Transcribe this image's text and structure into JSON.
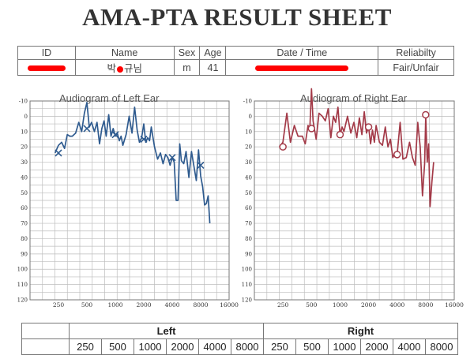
{
  "title": "AMA-PTA RESULT SHEET",
  "info": {
    "headers": [
      "ID",
      "Name",
      "Sex",
      "Age",
      "Date / Time",
      "Reliabilty"
    ],
    "name_start": "박",
    "name_end": "규님",
    "sex": "m",
    "age": "41",
    "reliability": "Fair/Unfair"
  },
  "chart_data": [
    {
      "type": "line",
      "title": "Audiogram of Left Ear",
      "color": "#2f5b8f",
      "y_ticks": [
        "-10",
        "0",
        "10",
        "20",
        "30",
        "40",
        "50",
        "60",
        "70",
        "80",
        "90",
        "100",
        "110",
        "120"
      ],
      "x_ticks": [
        "250",
        "500",
        "1000",
        "2000",
        "4000",
        "8000",
        "16000"
      ],
      "ylim": [
        -10,
        120
      ],
      "y_inverted": true,
      "series": [
        {
          "x": [
            230,
            250,
            270,
            290,
            310,
            330,
            350,
            380,
            410,
            440,
            470,
            500,
            530,
            560,
            600,
            640,
            680,
            720,
            760,
            800,
            850,
            900,
            950,
            1000,
            1050,
            1100,
            1150,
            1200,
            1300,
            1400,
            1500,
            1600,
            1700,
            1800,
            1900,
            2000,
            2100,
            2200,
            2300,
            2400,
            2600,
            2800,
            3000,
            3200,
            3400,
            3600,
            3800,
            4000,
            4200,
            4400,
            4600,
            4800,
            5000,
            5300,
            5600,
            6000,
            6400,
            6800,
            7200,
            7600,
            8000,
            8400,
            8800,
            9200,
            9600,
            10000
          ],
          "y": [
            24,
            19,
            17,
            21,
            12,
            13,
            13,
            11,
            4,
            10,
            -2,
            -9,
            7,
            4,
            10,
            4,
            18,
            8,
            3,
            13,
            -1,
            13,
            8,
            13,
            11,
            16,
            13,
            19,
            12,
            0,
            11,
            -6,
            9,
            17,
            14,
            5,
            17,
            14,
            16,
            7,
            20,
            28,
            24,
            31,
            25,
            27,
            32,
            27,
            30,
            55,
            55,
            18,
            29,
            31,
            23,
            40,
            23,
            33,
            42,
            22,
            39,
            46,
            58,
            57,
            52,
            70
          ]
        }
      ],
      "markers": [
        {
          "x": 250,
          "y": 24
        },
        {
          "x": 500,
          "y": 8
        },
        {
          "x": 1000,
          "y": 12
        },
        {
          "x": 2000,
          "y": 15
        },
        {
          "x": 4000,
          "y": 27
        },
        {
          "x": 8000,
          "y": 32
        }
      ],
      "marker_symbol": "x"
    },
    {
      "type": "line",
      "title": "Audiogram of Right Ear",
      "color": "#a33a48",
      "y_ticks": [
        "-10",
        "0",
        "10",
        "20",
        "30",
        "40",
        "50",
        "60",
        "70",
        "80",
        "90",
        "100",
        "110",
        "120"
      ],
      "x_ticks": [
        "250",
        "500",
        "1000",
        "2000",
        "4000",
        "8000",
        "16000"
      ],
      "ylim": [
        -10,
        120
      ],
      "y_inverted": true,
      "series": [
        {
          "x": [
            230,
            250,
            275,
            300,
            330,
            360,
            400,
            430,
            460,
            480,
            500,
            520,
            560,
            600,
            650,
            700,
            750,
            800,
            850,
            900,
            950,
            1000,
            1050,
            1100,
            1200,
            1300,
            1400,
            1500,
            1600,
            1700,
            1800,
            1900,
            2000,
            2100,
            2200,
            2300,
            2400,
            2600,
            2800,
            3000,
            3200,
            3400,
            3600,
            3800,
            4000,
            4300,
            4600,
            5000,
            5400,
            5800,
            6200,
            6600,
            7000,
            7400,
            7800,
            8000,
            8300,
            8600,
            8900,
            9300,
            9700
          ],
          "y": [
            20,
            17,
            -2,
            17,
            6,
            13,
            13,
            18,
            6,
            8,
            -18,
            3,
            15,
            -2,
            0,
            3,
            -5,
            14,
            0,
            4,
            -6,
            12,
            7,
            10,
            0,
            11,
            4,
            14,
            1,
            12,
            -3,
            11,
            7,
            18,
            9,
            17,
            6,
            17,
            19,
            7,
            20,
            15,
            27,
            24,
            25,
            4,
            28,
            27,
            17,
            27,
            32,
            4,
            20,
            52,
            31,
            0,
            30,
            18,
            59,
            43,
            30
          ]
        }
      ],
      "markers": [
        {
          "x": 250,
          "y": 20
        },
        {
          "x": 500,
          "y": 8
        },
        {
          "x": 1000,
          "y": 12
        },
        {
          "x": 2000,
          "y": 7
        },
        {
          "x": 4000,
          "y": 25
        },
        {
          "x": 8000,
          "y": -1
        }
      ],
      "marker_symbol": "o"
    }
  ],
  "results": {
    "left_label": "Left",
    "right_label": "Right",
    "freqs": [
      "250",
      "500",
      "1000",
      "2000",
      "4000",
      "8000"
    ]
  }
}
